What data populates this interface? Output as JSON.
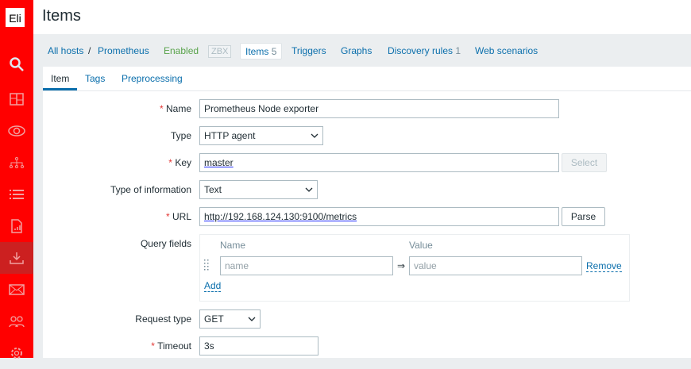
{
  "sidebar": {
    "logo": "Eli",
    "items": [
      "search-icon",
      "dashboard-icon",
      "monitoring-eye-icon",
      "network-icon",
      "list-icon",
      "reports-icon",
      "data-collection-icon",
      "alerts-mail-icon",
      "users-icon",
      "settings-gear-icon"
    ],
    "active": "data-collection-icon",
    "color": "#ff0000"
  },
  "header": {
    "title": "Items"
  },
  "nav": {
    "all_hosts": "All hosts",
    "sep": "/",
    "host": "Prometheus",
    "status": "Enabled",
    "zbx": "ZBX",
    "items": "Items",
    "items_count": "5",
    "triggers": "Triggers",
    "graphs": "Graphs",
    "discovery": "Discovery rules",
    "discovery_count": "1",
    "web": "Web scenarios"
  },
  "tabs": [
    "Item",
    "Tags",
    "Preprocessing"
  ],
  "form": {
    "req": "*",
    "name_label": "Name",
    "name_value": "Prometheus Node exporter",
    "type_label": "Type",
    "type_value": "HTTP agent",
    "key_label": "Key",
    "key_value": "master",
    "select_btn": "Select",
    "info_label": "Type of information",
    "info_value": "Text",
    "url_label": "URL",
    "url_value": "http://192.168.124.130:9100/metrics",
    "parse_btn": "Parse",
    "query_label": "Query fields",
    "q_name_header": "Name",
    "q_value_header": "Value",
    "q_name_placeholder": "name",
    "q_arrow": "⇒",
    "q_value_placeholder": "value",
    "remove": "Remove",
    "add": "Add",
    "request_label": "Request type",
    "request_value": "GET",
    "timeout_label": "Timeout",
    "timeout_value": "3s"
  }
}
